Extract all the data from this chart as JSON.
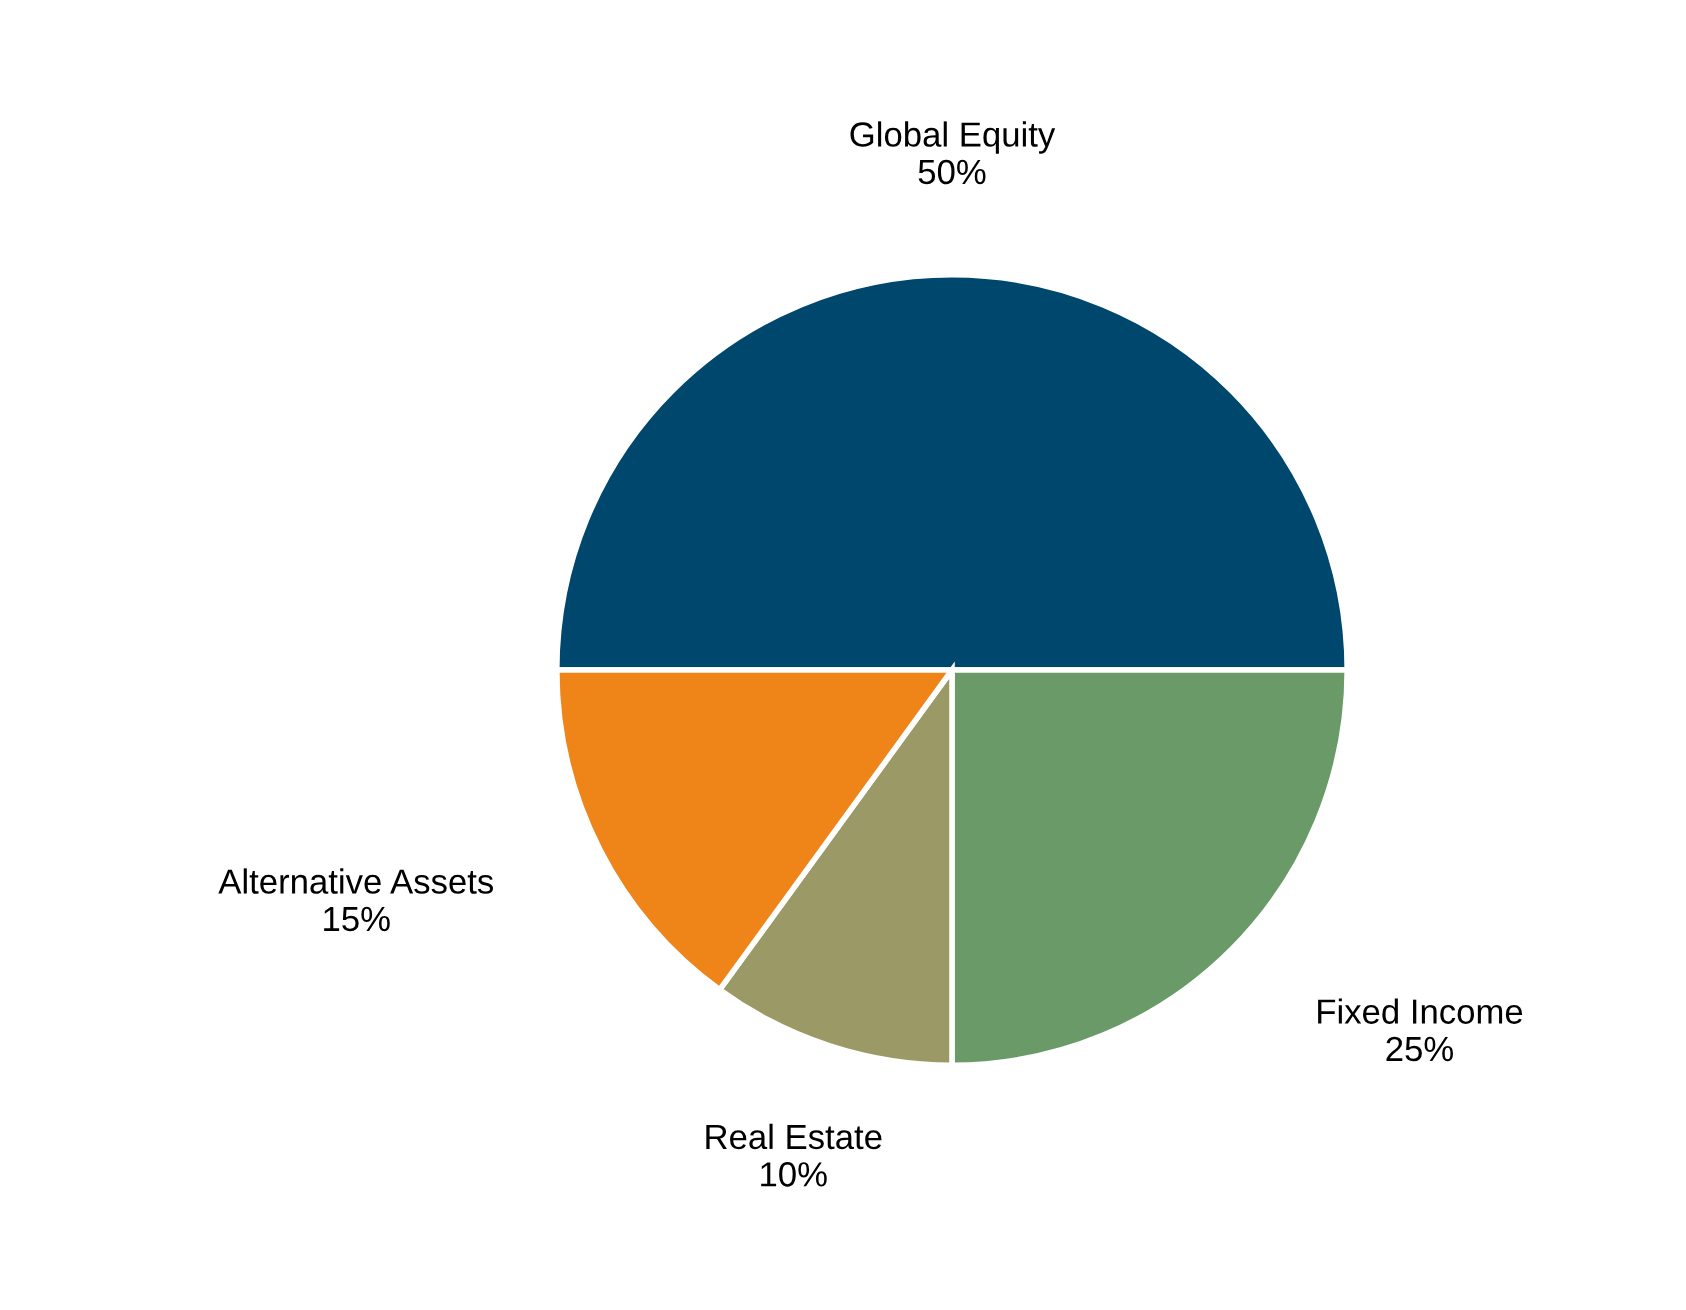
{
  "chart_data": {
    "type": "pie",
    "categories": [
      "Global Equity",
      "Fixed Income",
      "Real Estate",
      "Alternative Assets"
    ],
    "values": [
      50,
      25,
      10,
      15
    ],
    "value_labels": [
      "50%",
      "25%",
      "10%",
      "15%"
    ],
    "colors": [
      "#00476e",
      "#699a68",
      "#9b9a66",
      "#ef8419"
    ],
    "legend": false
  }
}
